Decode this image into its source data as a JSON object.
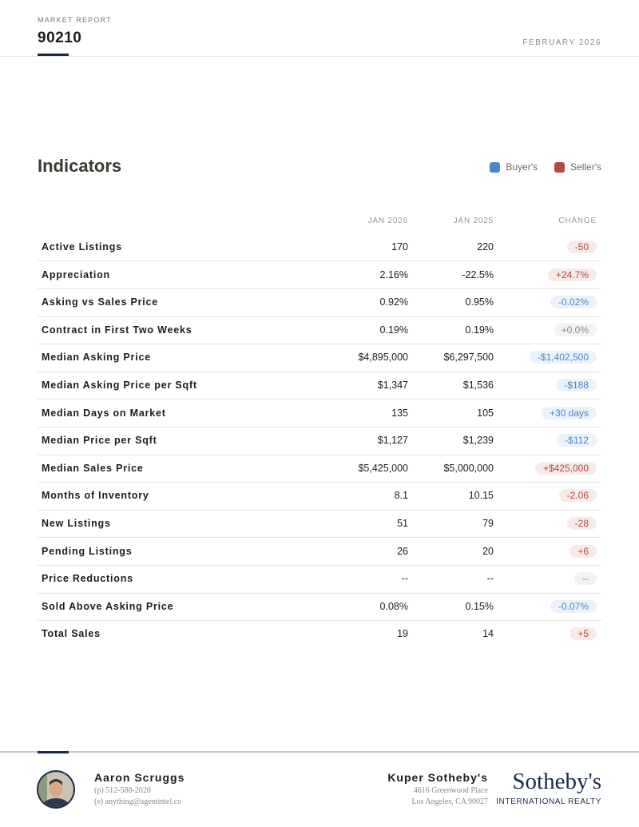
{
  "header": {
    "eyebrow": "MARKET REPORT",
    "title": "90210",
    "date": "FEBRUARY 2026"
  },
  "indicators": {
    "title": "Indicators",
    "legend": [
      {
        "name": "Buyer's",
        "color": "#4a86c8"
      },
      {
        "name": "Seller's",
        "color": "#b5483c"
      }
    ],
    "columns": [
      "JAN 2026",
      "JAN 2025",
      "CHANGE"
    ],
    "rows": [
      {
        "name": "Active Listings",
        "jan_2026": "170",
        "jan_2025": "220",
        "change": "-50",
        "color": "#b5483c"
      },
      {
        "name": "Appreciation",
        "jan_2026": "2.16%",
        "jan_2025": "-22.5%",
        "change": "+24.7%",
        "color": "#b5483c"
      },
      {
        "name": "Asking vs Sales Price",
        "jan_2026": "0.92%",
        "jan_2025": "0.95%",
        "change": "-0.02%",
        "color": "#4a86c8"
      },
      {
        "name": "Contract in First Two Weeks",
        "jan_2026": "0.19%",
        "jan_2025": "0.19%",
        "change": "+0.0%",
        "color": "#8a8a80"
      },
      {
        "name": "Median Asking Price",
        "jan_2026": "$4,895,000",
        "jan_2025": "$6,297,500",
        "change": "-$1,402,500",
        "color": "#4a86c8"
      },
      {
        "name": "Median Asking Price per Sqft",
        "jan_2026": "$1,347",
        "jan_2025": "$1,536",
        "change": "-$188",
        "color": "#4a86c8"
      },
      {
        "name": "Median Days on Market",
        "jan_2026": "135",
        "jan_2025": "105",
        "change": "+30 days",
        "color": "#4a86c8"
      },
      {
        "name": "Median Price per Sqft",
        "jan_2026": "$1,127",
        "jan_2025": "$1,239",
        "change": "-$112",
        "color": "#4a86c8"
      },
      {
        "name": "Median Sales Price",
        "jan_2026": "$5,425,000",
        "jan_2025": "$5,000,000",
        "change": "+$425,000",
        "color": "#b5483c"
      },
      {
        "name": "Months of Inventory",
        "jan_2026": "8.1",
        "jan_2025": "10.15",
        "change": "-2.06",
        "color": "#b5483c"
      },
      {
        "name": "New Listings",
        "jan_2026": "51",
        "jan_2025": "79",
        "change": "-28",
        "color": "#b5483c"
      },
      {
        "name": "Pending Listings",
        "jan_2026": "26",
        "jan_2025": "20",
        "change": "+6",
        "color": "#b5483c"
      },
      {
        "name": "Price Reductions",
        "jan_2026": "--",
        "jan_2025": "--",
        "change": "--",
        "color": "#8a8a80"
      },
      {
        "name": "Sold Above Asking Price",
        "jan_2026": "0.08%",
        "jan_2025": "0.15%",
        "change": "-0.07%",
        "color": "#4a86c8"
      },
      {
        "name": "Total Sales",
        "jan_2026": "19",
        "jan_2025": "14",
        "change": "+5",
        "color": "#b5483c"
      }
    ]
  },
  "footer": {
    "agent": {
      "name": "Aaron Scruggs",
      "phone": "(p) 512-588-2020",
      "email": "(e) anything@agentintel.co"
    },
    "office": {
      "name": "Kuper Sotheby's",
      "address_1": "4616 Greenwood Place",
      "address_2": "Los Angeles, CA 90027"
    },
    "logo": {
      "wordmark": "Sotheby's",
      "tagline": "INTERNATIONAL REALTY"
    }
  }
}
